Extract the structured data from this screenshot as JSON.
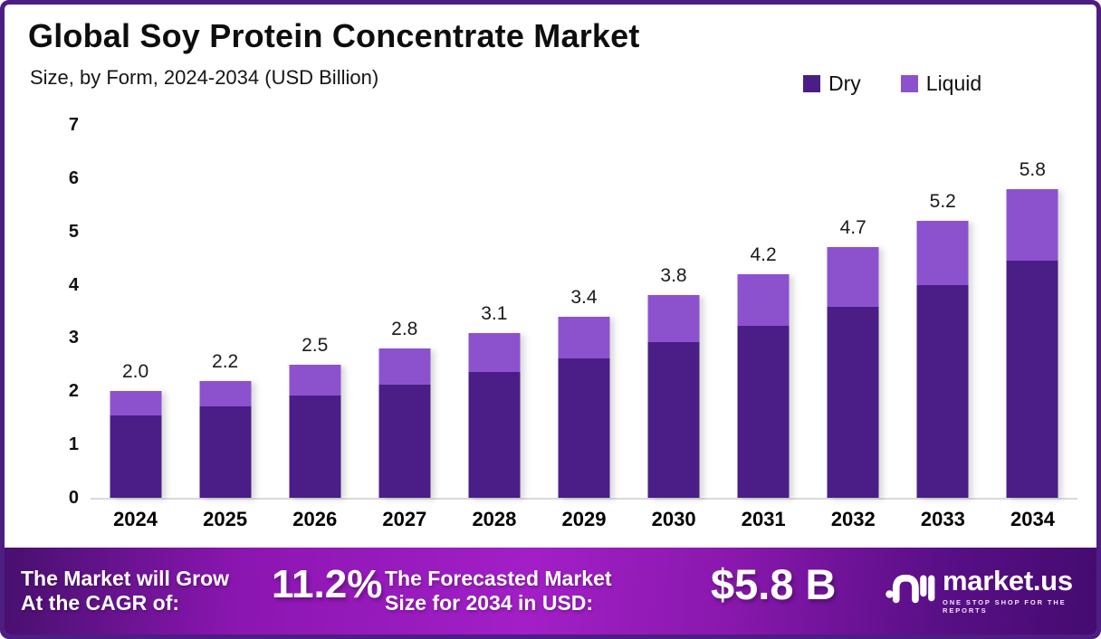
{
  "title": "Global Soy Protein Concentrate Market",
  "subtitle": "Size, by Form, 2024-2034 (USD Billion)",
  "legend": {
    "items": [
      {
        "label": "Dry",
        "color": "#4A1E86"
      },
      {
        "label": "Liquid",
        "color": "#8C52CE"
      }
    ]
  },
  "chart_data": {
    "type": "bar",
    "stacked": true,
    "title": "Global Soy Protein Concentrate Market Size, by Form, 2024-2034 (USD Billion)",
    "categories": [
      "2024",
      "2025",
      "2026",
      "2027",
      "2028",
      "2029",
      "2030",
      "2031",
      "2032",
      "2033",
      "2034"
    ],
    "series": [
      {
        "name": "Dry",
        "color": "#4A1E86",
        "values": [
          1.55,
          1.72,
          1.92,
          2.12,
          2.36,
          2.62,
          2.92,
          3.22,
          3.58,
          4.0,
          4.46
        ]
      },
      {
        "name": "Liquid",
        "color": "#8C52CE",
        "values": [
          0.45,
          0.48,
          0.58,
          0.68,
          0.74,
          0.78,
          0.88,
          0.98,
          1.12,
          1.2,
          1.34
        ]
      }
    ],
    "total_labels": [
      "2.0",
      "2.2",
      "2.5",
      "2.8",
      "3.1",
      "3.4",
      "3.8",
      "4.2",
      "4.7",
      "5.2",
      "5.8"
    ],
    "xlabel": "",
    "ylabel": "",
    "ylim": [
      0,
      7
    ],
    "yticks": [
      0,
      1,
      2,
      3,
      4,
      5,
      6,
      7
    ],
    "grid": false,
    "legend_position": "top-right"
  },
  "footer": {
    "growth_label_line1": "The Market will Grow",
    "growth_label_line2": "At the CAGR of:",
    "cagr_value": "11.2%",
    "forecast_label_line1": "The Forecasted Market",
    "forecast_label_line2": "Size for 2034 in USD:",
    "forecast_value": "$5.8 B",
    "brand_name": "market.us",
    "brand_tagline": "ONE STOP SHOP FOR THE REPORTS"
  },
  "colors": {
    "dry": "#4A1E86",
    "liquid": "#8C52CE",
    "frame_border": "#4C1D82",
    "axis_line": "#DADADA",
    "footer_gradient_start": "#47106E",
    "footer_gradient_mid": "#A21FC6",
    "footer_gradient_end": "#440B70"
  }
}
